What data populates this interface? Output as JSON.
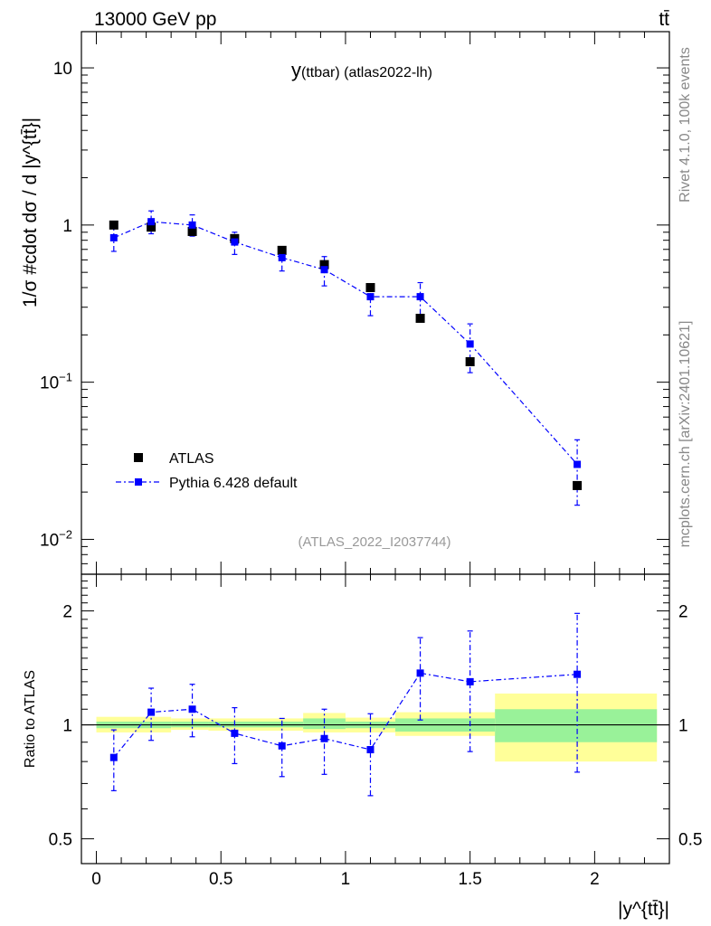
{
  "header": {
    "left_title": "13000 GeV pp",
    "right_title": "tt̄"
  },
  "side_labels": {
    "rivet": "Rivet 4.1.0,  100k events",
    "mcplots": "mcplots.cern.ch [arXiv:2401.10621]"
  },
  "colors": {
    "data": "#000000",
    "mc": "#0000ff",
    "band_inner": "#99f299",
    "band_outer": "#ffff99",
    "ref_text": "#999999"
  },
  "chart_data": [
    {
      "type": "scatter",
      "panel": "main",
      "title": "y(ttbar) (atlas2022-lh)",
      "title_main": "y",
      "title_rest": "(ttbar) (atlas2022-lh)",
      "reference": "(ATLAS_2022_I2037744)",
      "ylabel": "1/σ #cdot dσ / d |y^{tt̄}|",
      "yscale": "log",
      "ylim": [
        0.006,
        17
      ],
      "xlim": [
        -0.06,
        2.3
      ],
      "yticks": [
        {
          "value": 10,
          "label": "10"
        },
        {
          "value": 1,
          "label": "1"
        },
        {
          "value": 0.1,
          "label": "10",
          "exp": "−1"
        },
        {
          "value": 0.01,
          "label": "10",
          "exp": "−2"
        }
      ],
      "legend_position": "bottom-left",
      "series": [
        {
          "name": "ATLAS",
          "style": "data",
          "x": [
            0.07,
            0.22,
            0.385,
            0.555,
            0.745,
            0.915,
            1.1,
            1.3,
            1.5,
            1.93
          ],
          "y": [
            1.0,
            0.97,
            0.91,
            0.82,
            0.69,
            0.56,
            0.4,
            0.255,
            0.135,
            0.022
          ]
        },
        {
          "name": "Pythia 6.428 default",
          "style": "mc",
          "x": [
            0.07,
            0.22,
            0.385,
            0.555,
            0.745,
            0.915,
            1.1,
            1.3,
            1.5,
            1.93
          ],
          "y": [
            0.83,
            1.05,
            1.0,
            0.78,
            0.62,
            0.52,
            0.35,
            0.35,
            0.175,
            0.03
          ],
          "err_low": [
            0.68,
            0.88,
            0.85,
            0.65,
            0.51,
            0.41,
            0.265,
            0.27,
            0.115,
            0.0165
          ],
          "err_high": [
            0.95,
            1.23,
            1.16,
            0.9,
            0.73,
            0.63,
            0.42,
            0.43,
            0.235,
            0.043
          ]
        }
      ]
    },
    {
      "type": "scatter",
      "panel": "ratio",
      "ylabel": "Ratio to ATLAS",
      "xlabel": "|y^{tt̄}|",
      "yscale": "log",
      "ylim": [
        0.43,
        2.5
      ],
      "xlim": [
        -0.06,
        2.3
      ],
      "xticks": [
        {
          "value": 0,
          "label": "0"
        },
        {
          "value": 0.5,
          "label": "0.5"
        },
        {
          "value": 1,
          "label": "1"
        },
        {
          "value": 1.5,
          "label": "1.5"
        },
        {
          "value": 2,
          "label": "2"
        }
      ],
      "yticks": [
        {
          "value": 2,
          "label": "2"
        },
        {
          "value": 1,
          "label": "1"
        },
        {
          "value": 0.5,
          "label": "0.5"
        }
      ],
      "bands": {
        "edges": [
          0,
          0.3,
          0.45,
          0.83,
          1.0,
          1.2,
          1.6,
          2.25
        ],
        "inner_low": [
          0.98,
          0.985,
          0.985,
          0.975,
          0.98,
          0.96,
          0.9
        ],
        "inner_high": [
          1.02,
          1.02,
          1.02,
          1.04,
          1.02,
          1.04,
          1.1
        ],
        "outer_low": [
          0.955,
          0.97,
          0.965,
          0.955,
          0.955,
          0.935,
          0.8
        ],
        "outer_high": [
          1.05,
          1.04,
          1.04,
          1.075,
          1.045,
          1.08,
          1.21
        ]
      },
      "series": [
        {
          "name": "Pythia 6.428 default / ATLAS",
          "style": "mc",
          "x": [
            0.07,
            0.22,
            0.385,
            0.555,
            0.745,
            0.915,
            1.1,
            1.3,
            1.5,
            1.93
          ],
          "y": [
            0.82,
            1.08,
            1.1,
            0.95,
            0.88,
            0.92,
            0.86,
            1.37,
            1.3,
            1.36
          ],
          "err_low": [
            0.67,
            0.91,
            0.93,
            0.79,
            0.73,
            0.74,
            0.65,
            1.03,
            0.85,
            0.75
          ],
          "err_high": [
            0.97,
            1.25,
            1.28,
            1.11,
            1.04,
            1.1,
            1.07,
            1.7,
            1.77,
            1.97
          ]
        }
      ]
    }
  ]
}
